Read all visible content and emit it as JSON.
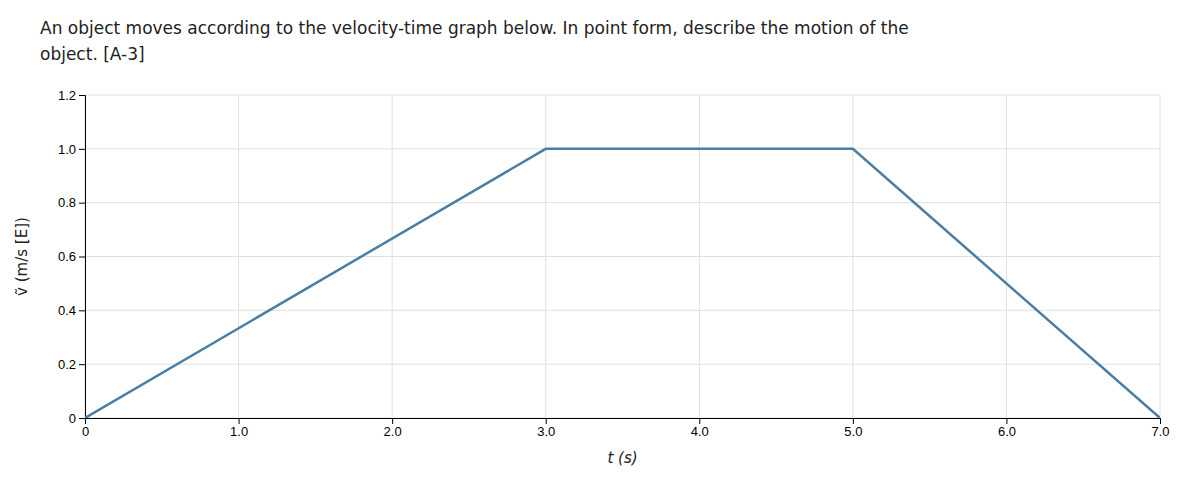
{
  "chart_data": {
    "type": "line",
    "title": "An object moves according to the velocity-time graph below. In point form, describe the motion of the",
    "subtitle": "object.  [A-3]",
    "x_label": "t (s)",
    "y_label": "ṽ (m/s [E])",
    "x": [
      0,
      3.0,
      5.0,
      7.0
    ],
    "values": [
      0,
      1.0,
      1.0,
      0
    ],
    "color": "#4a7fa5",
    "xlim": [
      0,
      7.0
    ],
    "ylim": [
      0,
      1.2
    ],
    "xticks": [
      0,
      {
        "value": 1.0,
        "label": "1.0"
      },
      {
        "value": 2.0,
        "label": "2.0"
      },
      {
        "value": 3.0,
        "label": "3.0"
      },
      {
        "value": 4.0,
        "label": "4.0"
      },
      {
        "value": 5.0,
        "label": "5.0"
      },
      {
        "value": 6.0,
        "label": "6.0"
      },
      {
        "value": 7.0,
        "label": "7.0"
      }
    ],
    "yticks": [
      0,
      0.2,
      0.4,
      0.6,
      0.8,
      {
        "value": 1.0,
        "label": "1.0"
      },
      1.2
    ],
    "grid": true
  }
}
